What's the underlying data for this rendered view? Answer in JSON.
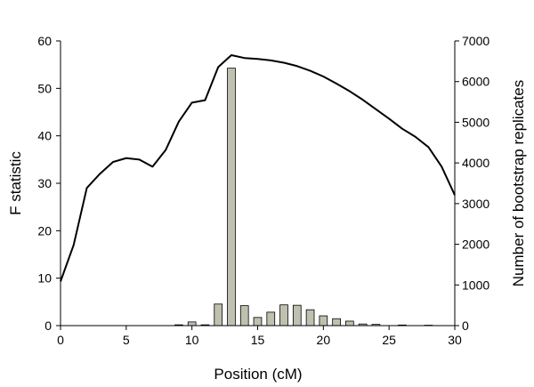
{
  "chart_data": {
    "type": "bar+line",
    "title": "",
    "xlabel": "Position (cM)",
    "ylabel_left": "F statistic",
    "ylabel_right": "Number of bootstrap replicates",
    "xlim": [
      0,
      30
    ],
    "ylim_left": [
      0,
      60
    ],
    "ylim_right": [
      0,
      7000
    ],
    "x_ticks": [
      "0",
      "5",
      "10",
      "15",
      "20",
      "25",
      "30"
    ],
    "y_left_ticks": [
      "0",
      "10",
      "20",
      "30",
      "40",
      "50",
      "60"
    ],
    "y_right_ticks": [
      "0",
      "1000",
      "2000",
      "3000",
      "4000",
      "5000",
      "6000",
      "7000"
    ],
    "grid": false,
    "colors": {
      "line": "#000000",
      "bar_fill": "#c0c0b0",
      "bar_stroke": "#000000",
      "axis": "#000000"
    },
    "series": [
      {
        "type": "line",
        "axis": "left",
        "x": [
          0,
          1,
          2,
          3,
          4,
          5,
          6,
          7,
          8,
          9,
          10,
          11,
          12,
          13,
          14,
          15,
          16,
          17,
          18,
          19,
          20,
          21,
          22,
          23,
          24,
          25,
          26,
          27,
          28,
          29,
          30
        ],
        "y": [
          9.3,
          17.0,
          29.0,
          32.0,
          34.5,
          35.3,
          35.0,
          33.5,
          37.0,
          43.0,
          47.0,
          47.5,
          54.5,
          57.0,
          56.4,
          56.2,
          55.9,
          55.4,
          54.7,
          53.7,
          52.5,
          51.0,
          49.4,
          47.6,
          45.6,
          43.6,
          41.5,
          39.8,
          37.6,
          33.5,
          27.5
        ]
      },
      {
        "type": "bar",
        "axis": "right",
        "x": [
          9,
          10,
          11,
          12,
          13,
          14,
          15,
          16,
          17,
          18,
          19,
          20,
          21,
          22,
          23,
          24,
          25,
          26,
          27,
          28,
          29
        ],
        "y": [
          20,
          90,
          20,
          530,
          6330,
          490,
          200,
          330,
          510,
          500,
          390,
          240,
          170,
          110,
          40,
          30,
          0,
          15,
          0,
          10,
          0
        ]
      }
    ]
  }
}
